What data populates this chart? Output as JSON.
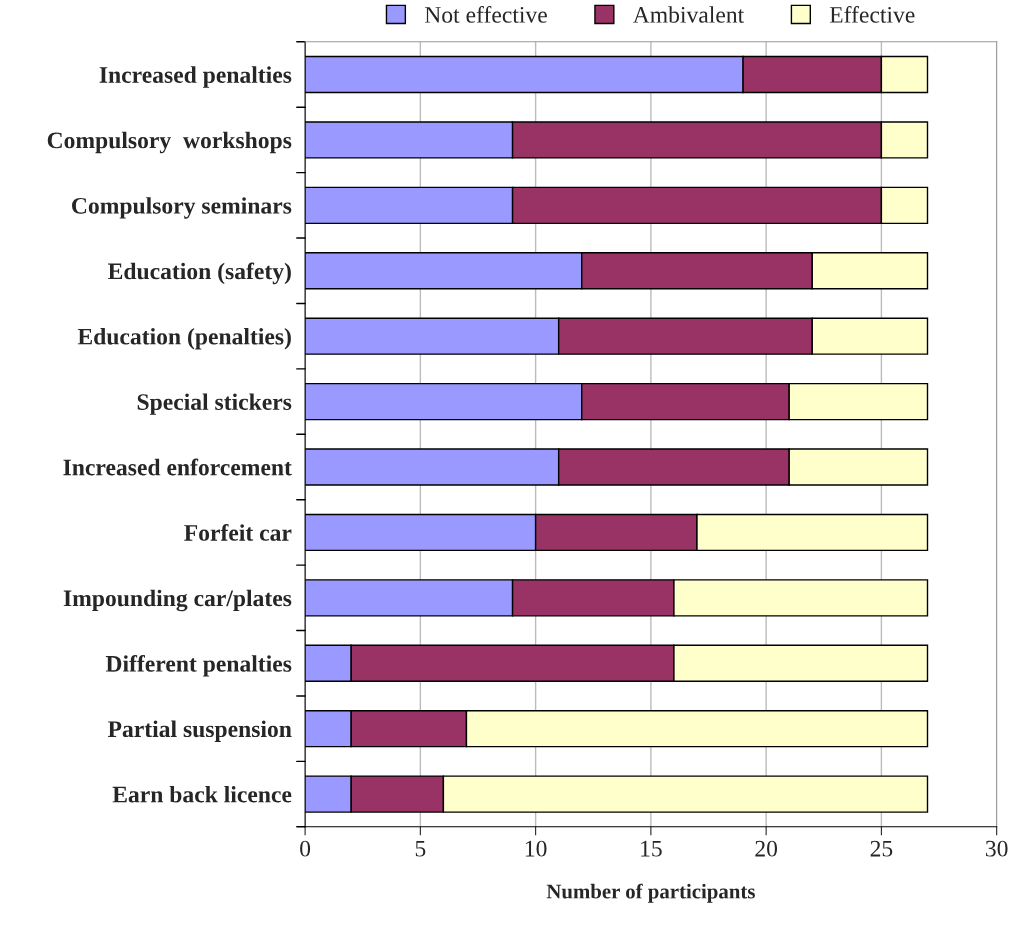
{
  "chart_data": {
    "type": "bar",
    "orientation": "horizontal",
    "stacked": true,
    "xlabel": "Number of participants",
    "categories": [
      "Increased penalties",
      "Compulsory  workshops",
      "Compulsory seminars",
      "Education (safety)",
      "Education (penalties)",
      "Special stickers",
      "Increased enforcement",
      "Forfeit car",
      "Impounding car/plates",
      "Different penalties",
      "Partial suspension",
      "Earn back licence"
    ],
    "series": [
      {
        "name": "Not effective",
        "color": "#9999ff",
        "values": [
          19,
          9,
          9,
          12,
          11,
          12,
          11,
          10,
          9,
          2,
          2,
          2
        ]
      },
      {
        "name": "Ambivalent",
        "color": "#993366",
        "values": [
          6,
          16,
          16,
          10,
          11,
          9,
          10,
          7,
          7,
          14,
          5,
          4
        ]
      },
      {
        "name": "Effective",
        "color": "#ffffcc",
        "values": [
          2,
          2,
          2,
          5,
          5,
          6,
          6,
          10,
          11,
          11,
          20,
          21
        ]
      }
    ],
    "xlim": [
      0,
      30
    ],
    "xticks": [
      0,
      5,
      10,
      15,
      20,
      25,
      30
    ],
    "grid": "x",
    "legend": "top"
  }
}
